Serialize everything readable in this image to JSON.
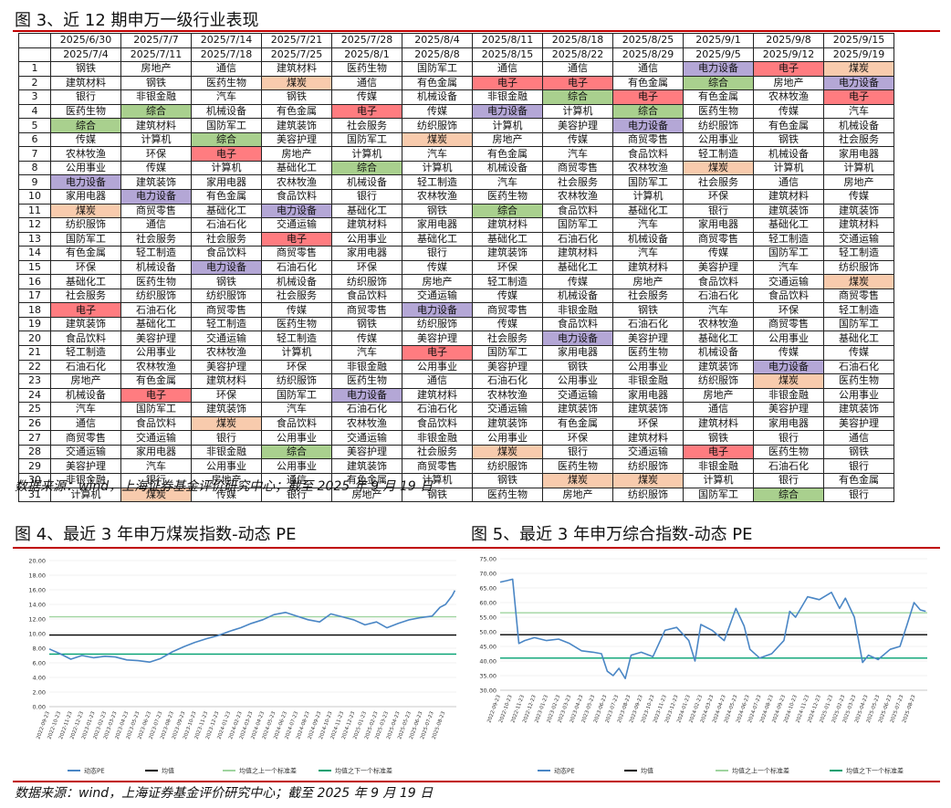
{
  "fig3": {
    "title": "图 3、近 12 期申万一级行业表现",
    "period_starts": [
      "2025/6/30",
      "2025/7/7",
      "2025/7/14",
      "2025/7/21",
      "2025/7/28",
      "2025/8/4",
      "2025/8/11",
      "2025/8/18",
      "2025/8/25",
      "2025/9/1",
      "2025/9/8",
      "2025/9/15"
    ],
    "period_ends": [
      "2025/7/4",
      "2025/7/11",
      "2025/7/18",
      "2025/7/25",
      "2025/8/1",
      "2025/8/8",
      "2025/8/15",
      "2025/8/22",
      "2025/8/29",
      "2025/9/5",
      "2025/9/12",
      "2025/9/19"
    ],
    "highlight_colors": {
      "煤炭": "#f8cbad",
      "综合": "#a9d08e",
      "电子": "#ff7c80",
      "电力设备": "#b4a7d6"
    },
    "rows": [
      [
        "钢铁",
        "房地产",
        "通信",
        "建筑材料",
        "医药生物",
        "国防军工",
        "通信",
        "通信",
        "通信",
        "电力设备",
        "电子",
        "煤炭"
      ],
      [
        "建筑材料",
        "钢铁",
        "医药生物",
        "煤炭",
        "通信",
        "有色金属",
        "电子",
        "电子",
        "有色金属",
        "综合",
        "房地产",
        "电力设备"
      ],
      [
        "银行",
        "非银金融",
        "汽车",
        "钢铁",
        "传媒",
        "机械设备",
        "非银金融",
        "综合",
        "电子",
        "有色金属",
        "农林牧渔",
        "电子"
      ],
      [
        "医药生物",
        "综合",
        "机械设备",
        "有色金属",
        "电子",
        "传媒",
        "电力设备",
        "计算机",
        "综合",
        "医药生物",
        "传媒",
        "汽车"
      ],
      [
        "综合",
        "建筑材料",
        "国防军工",
        "建筑装饰",
        "社会服务",
        "纺织服饰",
        "计算机",
        "美容护理",
        "电力设备",
        "纺织服饰",
        "有色金属",
        "机械设备"
      ],
      [
        "传媒",
        "计算机",
        "综合",
        "美容护理",
        "国防军工",
        "煤炭",
        "房地产",
        "传媒",
        "商贸零售",
        "公用事业",
        "钢铁",
        "社会服务"
      ],
      [
        "农林牧渔",
        "环保",
        "电子",
        "房地产",
        "计算机",
        "汽车",
        "有色金属",
        "汽车",
        "食品饮料",
        "轻工制造",
        "机械设备",
        "家用电器"
      ],
      [
        "公用事业",
        "传媒",
        "计算机",
        "基础化工",
        "综合",
        "计算机",
        "机械设备",
        "商贸零售",
        "农林牧渔",
        "煤炭",
        "计算机",
        "计算机"
      ],
      [
        "电力设备",
        "建筑装饰",
        "家用电器",
        "农林牧渔",
        "机械设备",
        "轻工制造",
        "汽车",
        "社会服务",
        "国防军工",
        "社会服务",
        "通信",
        "房地产"
      ],
      [
        "家用电器",
        "电力设备",
        "有色金属",
        "食品饮料",
        "银行",
        "农林牧渔",
        "医药生物",
        "农林牧渔",
        "计算机",
        "环保",
        "建筑材料",
        "传媒"
      ],
      [
        "煤炭",
        "商贸零售",
        "基础化工",
        "电力设备",
        "基础化工",
        "钢铁",
        "综合",
        "食品饮料",
        "基础化工",
        "银行",
        "建筑装饰",
        "建筑装饰"
      ],
      [
        "纺织服饰",
        "通信",
        "石油石化",
        "交通运输",
        "建筑材料",
        "家用电器",
        "建筑材料",
        "国防军工",
        "汽车",
        "家用电器",
        "基础化工",
        "建筑材料"
      ],
      [
        "国防军工",
        "社会服务",
        "社会服务",
        "电子",
        "公用事业",
        "基础化工",
        "基础化工",
        "石油石化",
        "机械设备",
        "商贸零售",
        "轻工制造",
        "交通运输"
      ],
      [
        "有色金属",
        "轻工制造",
        "食品饮料",
        "商贸零售",
        "家用电器",
        "银行",
        "建筑装饰",
        "建筑材料",
        "汽车",
        "传媒",
        "国防军工",
        "轻工制造"
      ],
      [
        "环保",
        "机械设备",
        "电力设备",
        "石油石化",
        "环保",
        "传媒",
        "环保",
        "基础化工",
        "建筑材料",
        "美容护理",
        "汽车",
        "纺织服饰"
      ],
      [
        "基础化工",
        "医药生物",
        "钢铁",
        "机械设备",
        "纺织服饰",
        "房地产",
        "轻工制造",
        "传媒",
        "房地产",
        "食品饮料",
        "交通运输",
        "煤炭"
      ],
      [
        "社会服务",
        "纺织服饰",
        "纺织服饰",
        "社会服务",
        "食品饮料",
        "交通运输",
        "传媒",
        "机械设备",
        "社会服务",
        "石油石化",
        "食品饮料",
        "商贸零售"
      ],
      [
        "电子",
        "石油石化",
        "商贸零售",
        "传媒",
        "商贸零售",
        "电力设备",
        "商贸零售",
        "非银金融",
        "钢铁",
        "汽车",
        "环保",
        "轻工制造"
      ],
      [
        "建筑装饰",
        "基础化工",
        "轻工制造",
        "医药生物",
        "钢铁",
        "纺织服饰",
        "传媒",
        "食品饮料",
        "石油石化",
        "农林牧渔",
        "商贸零售",
        "国防军工"
      ],
      [
        "食品饮料",
        "美容护理",
        "交通运输",
        "轻工制造",
        "传媒",
        "美容护理",
        "社会服务",
        "电力设备",
        "美容护理",
        "基础化工",
        "公用事业",
        "基础化工"
      ],
      [
        "轻工制造",
        "公用事业",
        "农林牧渔",
        "计算机",
        "汽车",
        "电子",
        "国防军工",
        "家用电器",
        "医药生物",
        "机械设备",
        "传媒",
        "传媒"
      ],
      [
        "石油石化",
        "农林牧渔",
        "美容护理",
        "环保",
        "非银金融",
        "公用事业",
        "美容护理",
        "钢铁",
        "公用事业",
        "建筑装饰",
        "电力设备",
        "石油石化"
      ],
      [
        "房地产",
        "有色金属",
        "建筑材料",
        "纺织服饰",
        "医药生物",
        "通信",
        "石油石化",
        "公用事业",
        "非银金融",
        "纺织服饰",
        "煤炭",
        "医药生物"
      ],
      [
        "机械设备",
        "电子",
        "环保",
        "国防军工",
        "电力设备",
        "建筑材料",
        "农林牧渔",
        "交通运输",
        "家用电器",
        "房地产",
        "非银金融",
        "公用事业"
      ],
      [
        "汽车",
        "国防军工",
        "建筑装饰",
        "汽车",
        "石油石化",
        "石油石化",
        "交通运输",
        "建筑装饰",
        "建筑装饰",
        "通信",
        "美容护理",
        "建筑装饰"
      ],
      [
        "通信",
        "食品饮料",
        "煤炭",
        "食品饮料",
        "农林牧渔",
        "食品饮料",
        "建筑装饰",
        "有色金属",
        "环保",
        "建筑材料",
        "家用电器",
        "美容护理"
      ],
      [
        "商贸零售",
        "交通运输",
        "银行",
        "公用事业",
        "交通运输",
        "非银金融",
        "公用事业",
        "环保",
        "建筑材料",
        "钢铁",
        "银行",
        "通信"
      ],
      [
        "交通运输",
        "家用电器",
        "非银金融",
        "综合",
        "美容护理",
        "社会服务",
        "煤炭",
        "银行",
        "交通运输",
        "电子",
        "医药生物",
        "钢铁"
      ],
      [
        "美容护理",
        "汽车",
        "公用事业",
        "公用事业",
        "建筑装饰",
        "商贸零售",
        "纺织服饰",
        "医药生物",
        "纺织服饰",
        "非银金融",
        "石油石化",
        "银行"
      ],
      [
        "非银金融",
        "银行",
        "房地产",
        "通信",
        "有色金属",
        "计算机",
        "钢铁",
        "煤炭",
        "煤炭",
        "计算机",
        "银行",
        "有色金属"
      ],
      [
        "计算机",
        "煤炭",
        "传媒",
        "银行",
        "房地产",
        "钢铁",
        "医药生物",
        "房地产",
        "纺织服饰",
        "国防军工",
        "综合",
        "银行"
      ]
    ]
  },
  "source_text": "数据来源：wind，上海证券基金评价研究中心；截至 2025 年 9 月 19 日",
  "chart_data": [
    {
      "type": "line",
      "title": "图 4、最近 3 年申万煤炭指数-动态 PE",
      "x_start": "2022-09-23",
      "x_end": "2025-09-23",
      "x_tick_labels": [
        "2022-09-23",
        "2022-10-23",
        "2022-11-23",
        "2022-12-23",
        "2023-01-23",
        "2023-02-23",
        "2023-03-23",
        "2023-04-23",
        "2023-05-23",
        "2023-06-23",
        "2023-07-23",
        "2023-08-23",
        "2023-09-23",
        "2023-10-23",
        "2023-11-23",
        "2023-12-23",
        "2024-01-23",
        "2024-02-23",
        "2024-03-23",
        "2024-04-23",
        "2024-05-23",
        "2024-06-23",
        "2024-07-23",
        "2024-08-23",
        "2024-09-23",
        "2024-10-23",
        "2024-11-23",
        "2024-12-23",
        "2025-01-23",
        "2025-02-23",
        "2025-03-23",
        "2025-04-23",
        "2025-05-23",
        "2025-06-23",
        "2025-07-23",
        "2025-08-23"
      ],
      "ylim": [
        0,
        20
      ],
      "y_ticks": [
        "0.00",
        "2.00",
        "4.00",
        "6.00",
        "8.00",
        "10.00",
        "12.00",
        "14.00",
        "16.00",
        "18.00",
        "20.00"
      ],
      "series": [
        {
          "name": "动态PE",
          "color": "#4a86c5",
          "dates": [
            "2022-09-23",
            "2022-10-20",
            "2022-11-20",
            "2022-12-20",
            "2023-01-20",
            "2023-02-20",
            "2023-03-20",
            "2023-04-20",
            "2023-05-20",
            "2023-06-20",
            "2023-07-20",
            "2023-08-20",
            "2023-09-20",
            "2023-10-20",
            "2023-11-20",
            "2023-12-20",
            "2024-01-20",
            "2024-02-20",
            "2024-03-20",
            "2024-04-20",
            "2024-05-20",
            "2024-06-20",
            "2024-07-20",
            "2024-08-20",
            "2024-09-20",
            "2024-10-20",
            "2024-11-20",
            "2024-12-20",
            "2025-01-20",
            "2025-02-20",
            "2025-03-20",
            "2025-04-20",
            "2025-05-20",
            "2025-06-20",
            "2025-07-20",
            "2025-08-10",
            "2025-08-25",
            "2025-09-12",
            "2025-09-19"
          ],
          "values": [
            7.9,
            7.3,
            6.5,
            7.0,
            6.7,
            6.9,
            6.8,
            6.4,
            6.3,
            6.1,
            6.6,
            7.5,
            8.2,
            8.8,
            9.3,
            9.7,
            10.3,
            10.8,
            11.4,
            11.9,
            12.6,
            12.9,
            12.4,
            11.9,
            11.6,
            12.7,
            12.3,
            11.9,
            11.2,
            11.6,
            10.8,
            11.4,
            11.9,
            12.2,
            12.4,
            13.6,
            14.0,
            15.2,
            15.9
          ]
        },
        {
          "name": "均值",
          "color": "#000000",
          "values": [
            9.8
          ]
        },
        {
          "name": "均值之上一个标准差",
          "color": "#9fd49f",
          "values": [
            12.3
          ]
        },
        {
          "name": "均值之下一个标准差",
          "color": "#00a070",
          "values": [
            7.2
          ]
        }
      ]
    },
    {
      "type": "line",
      "title": "图 5、最近 3 年申万综合指数-动态 PE",
      "x_start": "2022-09-23",
      "x_end": "2025-09-23",
      "x_tick_labels": [
        "2022-09-23",
        "2022-10-23",
        "2022-11-23",
        "2022-12-23",
        "2023-01-23",
        "2023-02-23",
        "2023-03-23",
        "2023-04-23",
        "2023-05-23",
        "2023-06-23",
        "2023-07-23",
        "2023-08-23",
        "2023-09-23",
        "2023-10-23",
        "2023-11-23",
        "2023-12-23",
        "2024-01-23",
        "2024-02-23",
        "2024-03-23",
        "2024-04-23",
        "2024-05-23",
        "2024-06-23",
        "2024-07-23",
        "2024-08-23",
        "2024-09-23",
        "2024-10-23",
        "2024-11-23",
        "2024-12-23",
        "2025-01-23",
        "2025-02-23",
        "2025-03-23",
        "2025-04-23",
        "2025-05-23",
        "2025-06-23",
        "2025-07-23",
        "2025-08-23"
      ],
      "ylim": [
        30,
        75
      ],
      "y_ticks": [
        "30.00",
        "35.00",
        "40.00",
        "45.00",
        "50.00",
        "55.00",
        "60.00",
        "65.00",
        "70.00",
        "75.00"
      ],
      "series": [
        {
          "name": "动态PE",
          "color": "#4a86c5",
          "dates": [
            "2022-09-23",
            "2022-10-10",
            "2022-10-25",
            "2022-11-10",
            "2022-11-25",
            "2022-12-20",
            "2023-01-20",
            "2023-02-20",
            "2023-03-20",
            "2023-04-20",
            "2023-05-20",
            "2023-06-10",
            "2023-06-25",
            "2023-07-10",
            "2023-07-25",
            "2023-08-10",
            "2023-08-25",
            "2023-09-20",
            "2023-10-20",
            "2023-11-20",
            "2023-12-20",
            "2024-01-20",
            "2024-02-05",
            "2024-02-20",
            "2024-03-20",
            "2024-04-20",
            "2024-05-20",
            "2024-06-10",
            "2024-06-25",
            "2024-07-20",
            "2024-08-20",
            "2024-09-20",
            "2024-10-05",
            "2024-10-20",
            "2024-11-20",
            "2024-12-20",
            "2025-01-20",
            "2025-02-10",
            "2025-02-25",
            "2025-03-20",
            "2025-04-10",
            "2025-04-25",
            "2025-05-20",
            "2025-06-20",
            "2025-07-15",
            "2025-08-01",
            "2025-08-20",
            "2025-09-05",
            "2025-09-19"
          ],
          "values": [
            67.0,
            67.5,
            68.0,
            46.0,
            47.0,
            48.0,
            47.0,
            47.5,
            46.0,
            43.5,
            43.0,
            42.5,
            36.5,
            35.0,
            37.5,
            34.0,
            42.0,
            43.0,
            41.5,
            50.5,
            51.5,
            47.0,
            40.0,
            52.5,
            50.5,
            47.0,
            58.0,
            52.0,
            44.0,
            41.0,
            42.5,
            47.0,
            57.0,
            55.0,
            62.0,
            61.0,
            63.5,
            58.0,
            61.5,
            55.0,
            39.5,
            42.0,
            40.5,
            44.0,
            45.0,
            52.0,
            60.0,
            57.5,
            57.0
          ]
        },
        {
          "name": "均值",
          "color": "#000000",
          "values": [
            49.0
          ]
        },
        {
          "name": "均值之上一个标准差",
          "color": "#9fd49f",
          "values": [
            56.5
          ]
        },
        {
          "name": "均值之下一个标准差",
          "color": "#00a070",
          "values": [
            41.0
          ]
        }
      ]
    }
  ]
}
